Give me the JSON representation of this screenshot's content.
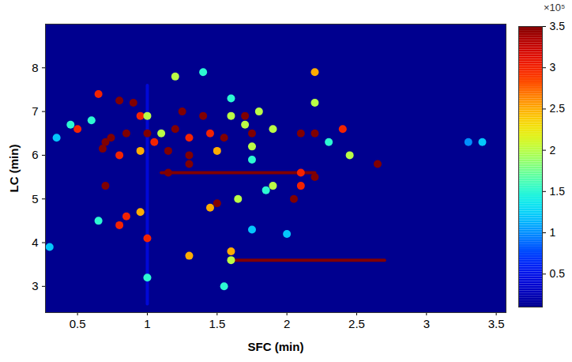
{
  "chart_data": {
    "type": "heatmap",
    "x_label": "SFC (min)",
    "y_label": "LC (min)",
    "xlim": [
      0.27,
      3.57
    ],
    "xticks": [
      0.5,
      1,
      1.5,
      2,
      2.5,
      3,
      3.5
    ],
    "ylim": [
      2.4,
      9.0
    ],
    "yticks": [
      3,
      4,
      5,
      6,
      7,
      8
    ],
    "cells": [
      {
        "x": 0.7,
        "y": 6.3,
        "value": 350000
      },
      {
        "x": 0.68,
        "y": 6.15,
        "value": 350000
      },
      {
        "x": 0.74,
        "y": 6.4,
        "value": 350000
      },
      {
        "x": 0.5,
        "y": 6.6,
        "value": 300000
      },
      {
        "x": 0.45,
        "y": 6.7,
        "value": 150000
      },
      {
        "x": 0.35,
        "y": 6.4,
        "value": 120000
      },
      {
        "x": 0.6,
        "y": 6.8,
        "value": 150000
      },
      {
        "x": 0.65,
        "y": 7.4,
        "value": 300000
      },
      {
        "x": 0.8,
        "y": 7.25,
        "value": 350000
      },
      {
        "x": 0.9,
        "y": 7.2,
        "value": 350000
      },
      {
        "x": 0.95,
        "y": 6.9,
        "value": 300000
      },
      {
        "x": 0.85,
        "y": 6.5,
        "value": 350000
      },
      {
        "x": 0.8,
        "y": 6.0,
        "value": 300000
      },
      {
        "x": 0.95,
        "y": 6.1,
        "value": 250000
      },
      {
        "x": 1.0,
        "y": 6.5,
        "value": 350000
      },
      {
        "x": 1.0,
        "y": 6.9,
        "value": 200000
      },
      {
        "x": 1.05,
        "y": 6.3,
        "value": 300000
      },
      {
        "x": 1.1,
        "y": 6.5,
        "value": 200000
      },
      {
        "x": 1.15,
        "y": 6.1,
        "value": 350000
      },
      {
        "x": 1.25,
        "y": 7.0,
        "value": 350000
      },
      {
        "x": 1.2,
        "y": 6.6,
        "value": 350000
      },
      {
        "x": 1.3,
        "y": 6.4,
        "value": 300000
      },
      {
        "x": 1.4,
        "y": 6.9,
        "value": 350000
      },
      {
        "x": 1.45,
        "y": 6.5,
        "value": 300000
      },
      {
        "x": 1.3,
        "y": 6.0,
        "value": 350000
      },
      {
        "x": 1.5,
        "y": 6.1,
        "value": 250000
      },
      {
        "x": 1.55,
        "y": 6.4,
        "value": 350000
      },
      {
        "x": 1.6,
        "y": 6.9,
        "value": 200000
      },
      {
        "x": 1.7,
        "y": 6.9,
        "value": 350000
      },
      {
        "x": 1.7,
        "y": 6.7,
        "value": 200000
      },
      {
        "x": 1.75,
        "y": 6.5,
        "value": 350000
      },
      {
        "x": 1.75,
        "y": 6.2,
        "value": 200000
      },
      {
        "x": 1.75,
        "y": 5.9,
        "value": 150000
      },
      {
        "x": 1.8,
        "y": 7.0,
        "value": 200000
      },
      {
        "x": 1.9,
        "y": 6.6,
        "value": 200000
      },
      {
        "x": 2.1,
        "y": 6.5,
        "value": 350000
      },
      {
        "x": 2.2,
        "y": 6.5,
        "value": 350000
      },
      {
        "x": 2.3,
        "y": 6.3,
        "value": 150000
      },
      {
        "x": 2.2,
        "y": 7.2,
        "value": 200000
      },
      {
        "x": 2.4,
        "y": 6.6,
        "value": 300000
      },
      {
        "x": 2.45,
        "y": 6.0,
        "value": 200000
      },
      {
        "x": 2.65,
        "y": 5.8,
        "value": 350000
      },
      {
        "x": 2.2,
        "y": 5.5,
        "value": 350000
      },
      {
        "x": 2.1,
        "y": 5.6,
        "value": 300000
      },
      {
        "x": 2.05,
        "y": 5.0,
        "value": 350000
      },
      {
        "x": 2.1,
        "y": 5.3,
        "value": 300000
      },
      {
        "x": 1.9,
        "y": 5.3,
        "value": 200000
      },
      {
        "x": 1.85,
        "y": 5.2,
        "value": 150000
      },
      {
        "x": 1.5,
        "y": 4.9,
        "value": 350000
      },
      {
        "x": 1.45,
        "y": 4.8,
        "value": 250000
      },
      {
        "x": 1.65,
        "y": 5.0,
        "value": 200000
      },
      {
        "x": 1.15,
        "y": 5.6,
        "value": 350000
      },
      {
        "x": 1.3,
        "y": 5.8,
        "value": 350000
      },
      {
        "x": 0.7,
        "y": 5.3,
        "value": 350000
      },
      {
        "x": 0.85,
        "y": 4.6,
        "value": 300000
      },
      {
        "x": 0.8,
        "y": 4.4,
        "value": 300000
      },
      {
        "x": 0.95,
        "y": 4.7,
        "value": 250000
      },
      {
        "x": 1.0,
        "y": 4.1,
        "value": 300000
      },
      {
        "x": 0.65,
        "y": 4.5,
        "value": 150000
      },
      {
        "x": 1.75,
        "y": 4.3,
        "value": 120000
      },
      {
        "x": 2.0,
        "y": 4.2,
        "value": 120000
      },
      {
        "x": 1.3,
        "y": 3.7,
        "value": 250000
      },
      {
        "x": 1.6,
        "y": 3.8,
        "value": 250000
      },
      {
        "x": 1.6,
        "y": 3.6,
        "value": 200000
      },
      {
        "x": 1.55,
        "y": 3.0,
        "value": 150000
      },
      {
        "x": 1.0,
        "y": 3.2,
        "value": 150000
      },
      {
        "x": 1.2,
        "y": 7.8,
        "value": 200000
      },
      {
        "x": 1.4,
        "y": 7.9,
        "value": 150000
      },
      {
        "x": 1.6,
        "y": 7.3,
        "value": 150000
      },
      {
        "x": 2.2,
        "y": 7.9,
        "value": 250000
      },
      {
        "x": 0.3,
        "y": 3.9,
        "value": 120000
      },
      {
        "x": 3.3,
        "y": 6.3,
        "value": 100000
      },
      {
        "x": 3.4,
        "y": 6.3,
        "value": 120000
      }
    ],
    "streaks": [
      {
        "x1": 1.1,
        "x2": 2.2,
        "y1": 5.6,
        "y2": 5.6,
        "value": 350000
      },
      {
        "x1": 1.6,
        "x2": 2.7,
        "y1": 3.6,
        "y2": 3.6,
        "value": 350000
      },
      {
        "x1": 1.0,
        "x2": 1.0,
        "y1": 2.6,
        "y2": 7.6,
        "value": 40000
      }
    ],
    "colorbar": {
      "range": [
        10000,
        350000
      ],
      "ticks": [
        {
          "value": 50000,
          "label": "0.5"
        },
        {
          "value": 100000,
          "label": "1"
        },
        {
          "value": 150000,
          "label": "1.5"
        },
        {
          "value": 200000,
          "label": "2"
        },
        {
          "value": 250000,
          "label": "2.5"
        },
        {
          "value": 300000,
          "label": "3"
        },
        {
          "value": 350000,
          "label": "3.5"
        }
      ],
      "multiplier_label": "×10⁵"
    }
  }
}
